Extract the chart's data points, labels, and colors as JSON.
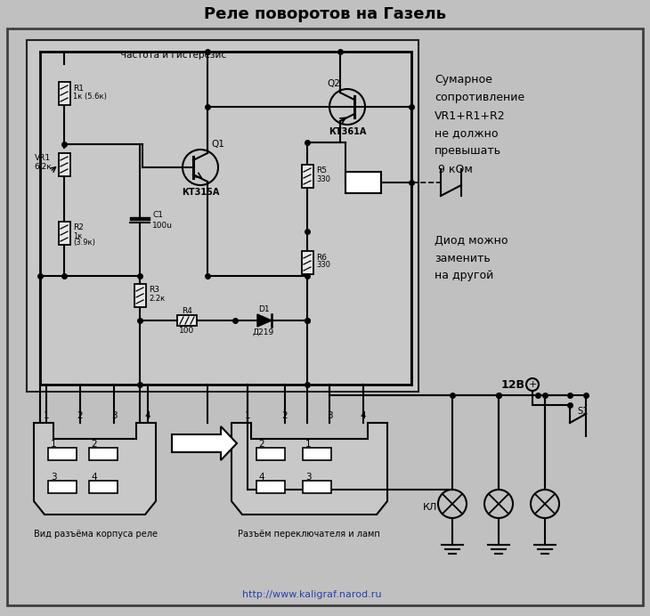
{
  "title": "Реле поворотов на Газель",
  "bg_color": "#c0c0c0",
  "text_color": "#000000",
  "line_color": "#000000",
  "note1_lines": [
    "Сумарное",
    "сопротивление",
    "VR1+R1+R2",
    "не должно",
    "превышать",
    " 9 кОм"
  ],
  "note2_lines": [
    "Диод можно",
    "заменить",
    "на другой"
  ],
  "bottom_label1": "Вид разъёма корпуса реле",
  "bottom_label2": "Разъём переключателя и ламп",
  "url": "http://www.kaligraf.narod.ru",
  "voltage_label": "12В"
}
